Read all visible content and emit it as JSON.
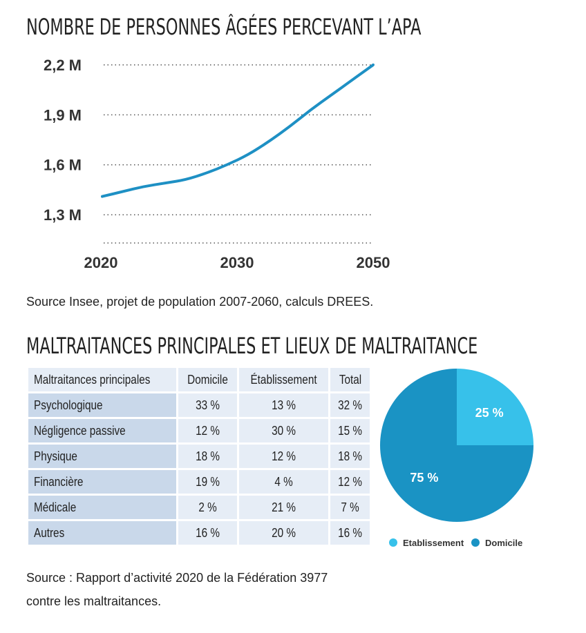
{
  "line_section": {
    "title": "NOMBRE DE PERSONNES ÂGÉES PERCEVANT L’APA",
    "source": "Source Insee, projet de population 2007-2060, calculs DREES."
  },
  "table_section": {
    "title": "MALTRAITANCES PRINCIPALES ET LIEUX DE MALTRAITANCE",
    "source_line1": "Source : Rapport d’activité 2020 de la Fédération 3977",
    "source_line2": "contre les maltraitances."
  },
  "chart_data": [
    {
      "type": "line",
      "title": "NOMBRE DE PERSONNES ÂGÉES PERCEVANT L’APA",
      "xlabel": "",
      "ylabel": "",
      "x_tick_labels": [
        "2020",
        "2030",
        "2050"
      ],
      "y_tick_labels": [
        "2,2 M",
        "1,9 M",
        "1,6 M",
        "1,3 M"
      ],
      "y_ticks": [
        2.2,
        1.9,
        1.6,
        1.3
      ],
      "ylim": [
        1.23,
        2.2
      ],
      "grid": "horizontal-dotted",
      "series": [
        {
          "color": "#1e90c4",
          "points": [
            [
              0,
              1.41
            ],
            [
              2,
              1.44
            ],
            [
              4,
              1.47
            ],
            [
              6,
              1.49
            ],
            [
              8,
              1.51
            ],
            [
              10,
              1.55
            ],
            [
              12,
              1.6
            ],
            [
              14,
              1.66
            ],
            [
              16,
              1.74
            ],
            [
              18,
              1.83
            ],
            [
              20,
              1.93
            ],
            [
              22,
              2.02
            ],
            [
              24,
              2.11
            ],
            [
              26,
              2.2
            ]
          ]
        }
      ]
    },
    {
      "type": "table",
      "columns": [
        "Maltraitances principales",
        "Domicile",
        "Établissement",
        "Total"
      ],
      "rows": [
        [
          "Psychologique",
          "33 %",
          "13 %",
          "32 %"
        ],
        [
          "Négligence passive",
          "12 %",
          "30 %",
          "15 %"
        ],
        [
          "Physique",
          "18 %",
          "12 %",
          "18 %"
        ],
        [
          "Financière",
          "19 %",
          "4 %",
          "12 %"
        ],
        [
          "Médicale",
          "2 %",
          "21 %",
          "7 %"
        ],
        [
          "Autres",
          "16 %",
          "20 %",
          "16 %"
        ]
      ]
    },
    {
      "type": "pie",
      "slices": [
        {
          "label": "Etablissement",
          "value": 25,
          "display": "25 %",
          "color": "#37c1ea"
        },
        {
          "label": "Domicile",
          "value": 75,
          "display": "75 %",
          "color": "#1a93c4"
        }
      ],
      "legend": "bottom"
    }
  ]
}
